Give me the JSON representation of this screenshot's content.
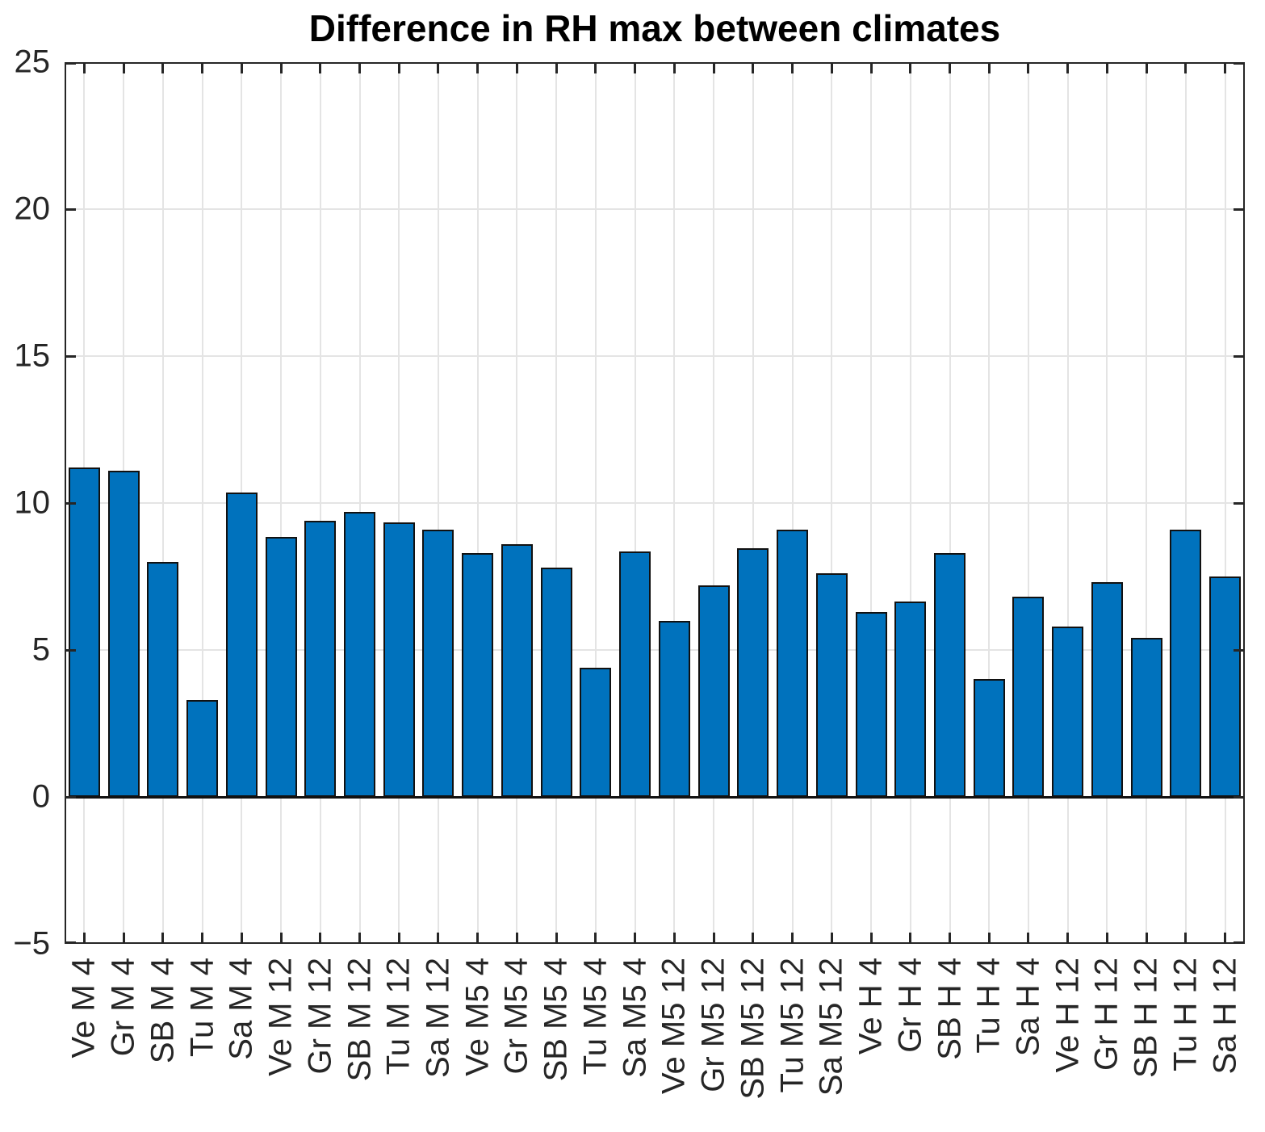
{
  "chart_data": {
    "type": "bar",
    "title": "Difference in RH max between climates",
    "xlabel": "",
    "ylabel": "",
    "categories": [
      "Ve M 4",
      "Gr M 4",
      "SB M 4",
      "Tu M 4",
      "Sa M 4",
      "Ve M 12",
      "Gr M 12",
      "SB M 12",
      "Tu M 12",
      "Sa M 12",
      "Ve M5 4",
      "Gr M5 4",
      "SB M5 4",
      "Tu M5 4",
      "Sa M5 4",
      "Ve M5 12",
      "Gr M5 12",
      "SB M5 12",
      "Tu M5 12",
      "Sa M5 12",
      "Ve H 4",
      "Gr H 4",
      "SB H 4",
      "Tu H 4",
      "Sa H 4",
      "Ve H 12",
      "Gr H 12",
      "SB H 12",
      "Tu H 12",
      "Sa H 12"
    ],
    "values": [
      11.2,
      11.1,
      8.0,
      3.3,
      10.35,
      8.85,
      9.4,
      9.7,
      9.35,
      9.1,
      8.3,
      8.6,
      7.8,
      4.4,
      8.35,
      6.0,
      7.2,
      8.45,
      9.1,
      7.6,
      6.3,
      6.65,
      8.3,
      4.0,
      6.8,
      5.8,
      7.3,
      5.4,
      9.1,
      7.5
    ],
    "ylim": [
      -5,
      25
    ],
    "yticks": [
      25,
      20,
      15,
      10,
      5,
      0,
      -5
    ],
    "ytick_labels": [
      "25",
      "20",
      "15",
      "10",
      "5",
      "0",
      "−5"
    ],
    "bar_width_fraction": 0.8,
    "grid": true,
    "legend_position": "none",
    "colors": {
      "bar_fill": "#0072BD",
      "bar_edge": "#111111",
      "axis": "#262626",
      "grid": "#e4e4e4",
      "baseline": "#111111",
      "tick_text": "#262626",
      "title_text": "#000000",
      "background": "#ffffff"
    }
  }
}
